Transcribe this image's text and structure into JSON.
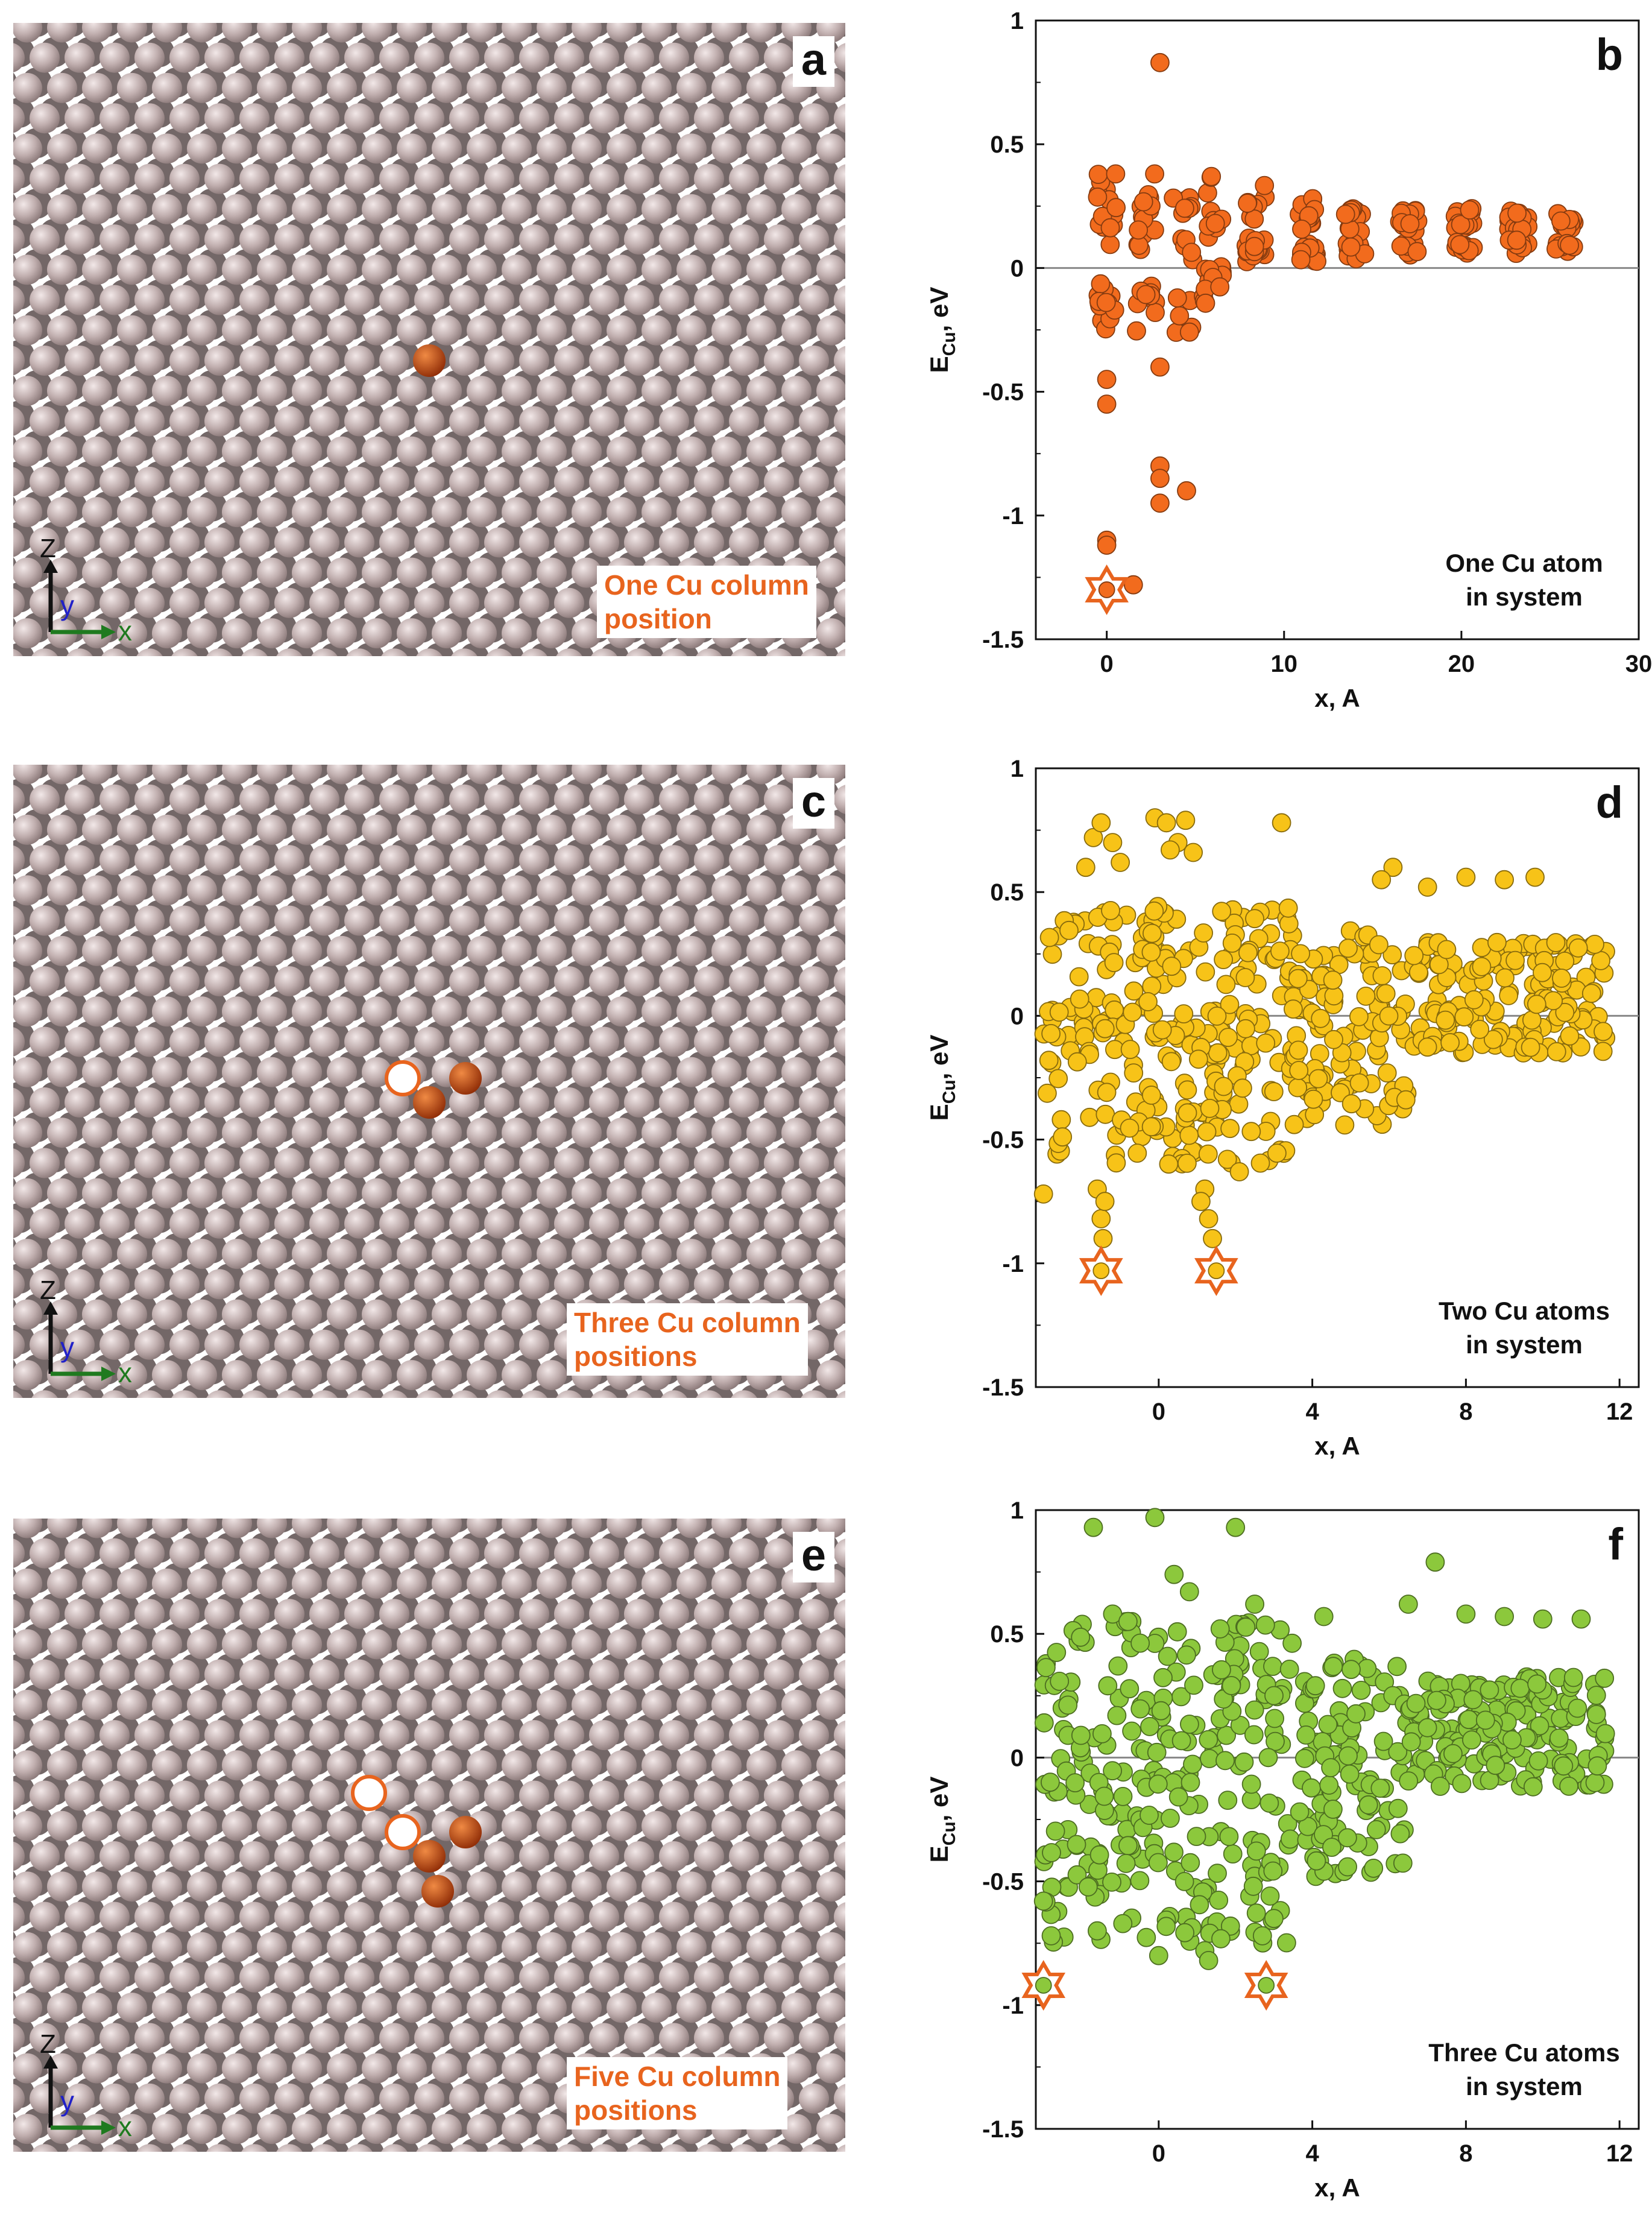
{
  "colors": {
    "orange": "#e8641e",
    "yellow": "#f7c318",
    "green": "#8cc83c",
    "atom": "#c0aeae",
    "atom_shadow": "#5a4c4c",
    "cu_atom": "#d9561a",
    "x_axis_color": "#1f7a1f",
    "y_axis_color": "#2020c8"
  },
  "panels": [
    {
      "letter": "a",
      "label_lines": [
        "One Cu column",
        "position"
      ],
      "axes": {
        "z": "Z",
        "y": "y",
        "x": "x"
      },
      "cu_filled": 1,
      "cu_open": 0
    },
    {
      "letter": "c",
      "label_lines": [
        "Three Cu column",
        "positions"
      ],
      "axes": {
        "z": "Z",
        "y": "y",
        "x": "x"
      },
      "cu_filled": 2,
      "cu_open": 1
    },
    {
      "letter": "e",
      "label_lines": [
        "Five Cu column",
        "positions"
      ],
      "axes": {
        "z": "Z",
        "y": "y",
        "x": "x"
      },
      "cu_filled": 3,
      "cu_open": 2
    }
  ],
  "chart_data": [
    {
      "type": "scatter",
      "panel": "b",
      "title": "",
      "xlabel": "x, A",
      "ylabel": "E_Cu, eV",
      "ylabel_main": "E",
      "ylabel_sub": "Cu",
      "ylabel_tail": ", eV",
      "xlim": [
        -4,
        30
      ],
      "ylim": [
        -1.5,
        1
      ],
      "xticks": [
        0,
        10,
        20,
        30
      ],
      "yticks": [
        1,
        0.5,
        0,
        -0.5,
        -1,
        -1.5
      ],
      "ytick_labels": [
        "1",
        "0.5",
        "0",
        "-0.5",
        "-1",
        "-1.5"
      ],
      "annotation": [
        "One Cu atom",
        "in system"
      ],
      "color": "#f26b1d",
      "star_points": [
        [
          0,
          -1.3
        ]
      ],
      "clusters": [
        {
          "x": 0,
          "y_min": -0.3,
          "y_max": 0.38,
          "n": 28
        },
        {
          "x": 2.2,
          "y_min": -0.3,
          "y_max": 0.38,
          "n": 26
        },
        {
          "x": 4.3,
          "y_min": -0.3,
          "y_max": 0.3,
          "n": 20
        },
        {
          "x": 6.0,
          "y_min": -0.18,
          "y_max": 0.37,
          "n": 26
        },
        {
          "x": 8.4,
          "y_min": 0.0,
          "y_max": 0.35,
          "n": 24
        },
        {
          "x": 11.3,
          "y_min": 0.0,
          "y_max": 0.28,
          "n": 24
        },
        {
          "x": 14.0,
          "y_min": 0.02,
          "y_max": 0.25,
          "n": 24
        },
        {
          "x": 17.0,
          "y_min": 0.03,
          "y_max": 0.24,
          "n": 24
        },
        {
          "x": 20.2,
          "y_min": 0.04,
          "y_max": 0.24,
          "n": 24
        },
        {
          "x": 23.2,
          "y_min": 0.05,
          "y_max": 0.23,
          "n": 24
        },
        {
          "x": 25.8,
          "y_min": 0.05,
          "y_max": 0.23,
          "n": 20
        }
      ],
      "bands": [],
      "points": [
        [
          0,
          -0.45
        ],
        [
          0,
          -0.55
        ],
        [
          0,
          -1.1
        ],
        [
          0,
          -1.12
        ],
        [
          1.5,
          -1.28
        ],
        [
          3.0,
          0.83
        ],
        [
          3.0,
          -0.4
        ],
        [
          3.0,
          -0.8
        ],
        [
          3.0,
          -0.85
        ],
        [
          3.0,
          -0.95
        ],
        [
          4.5,
          -0.9
        ],
        [
          2.7,
          0.38
        ],
        [
          5.9,
          0.37
        ],
        [
          0.5,
          0.38
        ]
      ]
    },
    {
      "type": "scatter",
      "panel": "d",
      "title": "",
      "xlabel": "x, A",
      "ylabel": "E_Cu, eV",
      "ylabel_main": "E",
      "ylabel_sub": "Cu",
      "ylabel_tail": ", eV",
      "xlim": [
        -3.2,
        12.5
      ],
      "ylim": [
        -1.5,
        1
      ],
      "xticks": [
        0,
        4,
        8,
        12
      ],
      "yticks": [
        1,
        0.5,
        0,
        -0.5,
        -1,
        -1.5
      ],
      "ytick_labels": [
        "1",
        "0.5",
        "0",
        "-0.5",
        "-1",
        "-1.5"
      ],
      "annotation": [
        "Two Cu atoms",
        "in system"
      ],
      "color": "#f7c318",
      "star_points": [
        [
          -1.5,
          -1.03
        ],
        [
          1.5,
          -1.03
        ]
      ],
      "clusters": [],
      "bands": [
        {
          "x_min": -3.0,
          "x_max": 3.5,
          "y_min": -0.6,
          "y_max": 0.45,
          "n": 260
        },
        {
          "x_min": 3.5,
          "x_max": 6.5,
          "y_min": -0.45,
          "y_max": 0.35,
          "n": 110
        },
        {
          "x_min": 6.5,
          "x_max": 11.7,
          "y_min": -0.15,
          "y_max": 0.3,
          "n": 170
        }
      ],
      "points": [
        [
          -1.9,
          0.6
        ],
        [
          -1.7,
          0.72
        ],
        [
          -1.5,
          0.78
        ],
        [
          -1.2,
          0.7
        ],
        [
          -1.0,
          0.62
        ],
        [
          -0.1,
          0.8
        ],
        [
          0.2,
          0.78
        ],
        [
          0.7,
          0.79
        ],
        [
          0.5,
          0.7
        ],
        [
          0.9,
          0.66
        ],
        [
          0.3,
          0.67
        ],
        [
          3.2,
          0.78
        ],
        [
          6.1,
          0.6
        ],
        [
          7.0,
          0.52
        ],
        [
          8.0,
          0.56
        ],
        [
          9.0,
          0.55
        ],
        [
          9.8,
          0.56
        ],
        [
          5.8,
          0.55
        ],
        [
          -1.6,
          -0.7
        ],
        [
          -1.5,
          -0.82
        ],
        [
          -1.45,
          -0.9
        ],
        [
          -1.4,
          -0.75
        ],
        [
          1.2,
          -0.7
        ],
        [
          1.3,
          -0.82
        ],
        [
          1.4,
          -0.9
        ],
        [
          1.1,
          -0.75
        ],
        [
          -3.0,
          -0.72
        ],
        [
          2.1,
          -0.63
        ]
      ]
    },
    {
      "type": "scatter",
      "panel": "f",
      "title": "",
      "xlabel": "x, A",
      "ylabel": "E_Cu, eV",
      "ylabel_main": "E",
      "ylabel_sub": "Cu",
      "ylabel_tail": ", eV",
      "xlim": [
        -3.2,
        12.5
      ],
      "ylim": [
        -1.5,
        1
      ],
      "xticks": [
        0,
        4,
        8,
        12
      ],
      "yticks": [
        1,
        0.5,
        0,
        -0.5,
        -1,
        -1.5
      ],
      "ytick_labels": [
        "1",
        "0.5",
        "0",
        "-0.5",
        "-1",
        "-1.5"
      ],
      "annotation": [
        "Three Cu atoms",
        "in system"
      ],
      "color": "#8cc83c",
      "star_points": [
        [
          -3.0,
          -0.92
        ],
        [
          2.8,
          -0.92
        ]
      ],
      "clusters": [],
      "bands": [
        {
          "x_min": -3.0,
          "x_max": 3.5,
          "y_min": -0.75,
          "y_max": 0.55,
          "n": 260
        },
        {
          "x_min": 3.5,
          "x_max": 6.5,
          "y_min": -0.5,
          "y_max": 0.4,
          "n": 110
        },
        {
          "x_min": 6.5,
          "x_max": 11.7,
          "y_min": -0.12,
          "y_max": 0.33,
          "n": 170
        }
      ],
      "points": [
        [
          -1.7,
          0.93
        ],
        [
          -0.1,
          0.97
        ],
        [
          2.0,
          0.93
        ],
        [
          0.4,
          0.74
        ],
        [
          2.5,
          0.62
        ],
        [
          -1.2,
          0.58
        ],
        [
          -0.8,
          0.55
        ],
        [
          0.8,
          0.67
        ],
        [
          1.6,
          0.52
        ],
        [
          7.2,
          0.79
        ],
        [
          8.0,
          0.58
        ],
        [
          9.0,
          0.57
        ],
        [
          10.0,
          0.56
        ],
        [
          11.0,
          0.56
        ],
        [
          6.5,
          0.62
        ],
        [
          4.3,
          0.57
        ],
        [
          -3.0,
          -0.58
        ],
        [
          -2.8,
          -0.72
        ],
        [
          1.2,
          -0.78
        ],
        [
          1.3,
          -0.82
        ],
        [
          2.7,
          -0.72
        ],
        [
          0.0,
          -0.8
        ],
        [
          -1.6,
          -0.7
        ],
        [
          3.0,
          -0.65
        ]
      ]
    }
  ]
}
